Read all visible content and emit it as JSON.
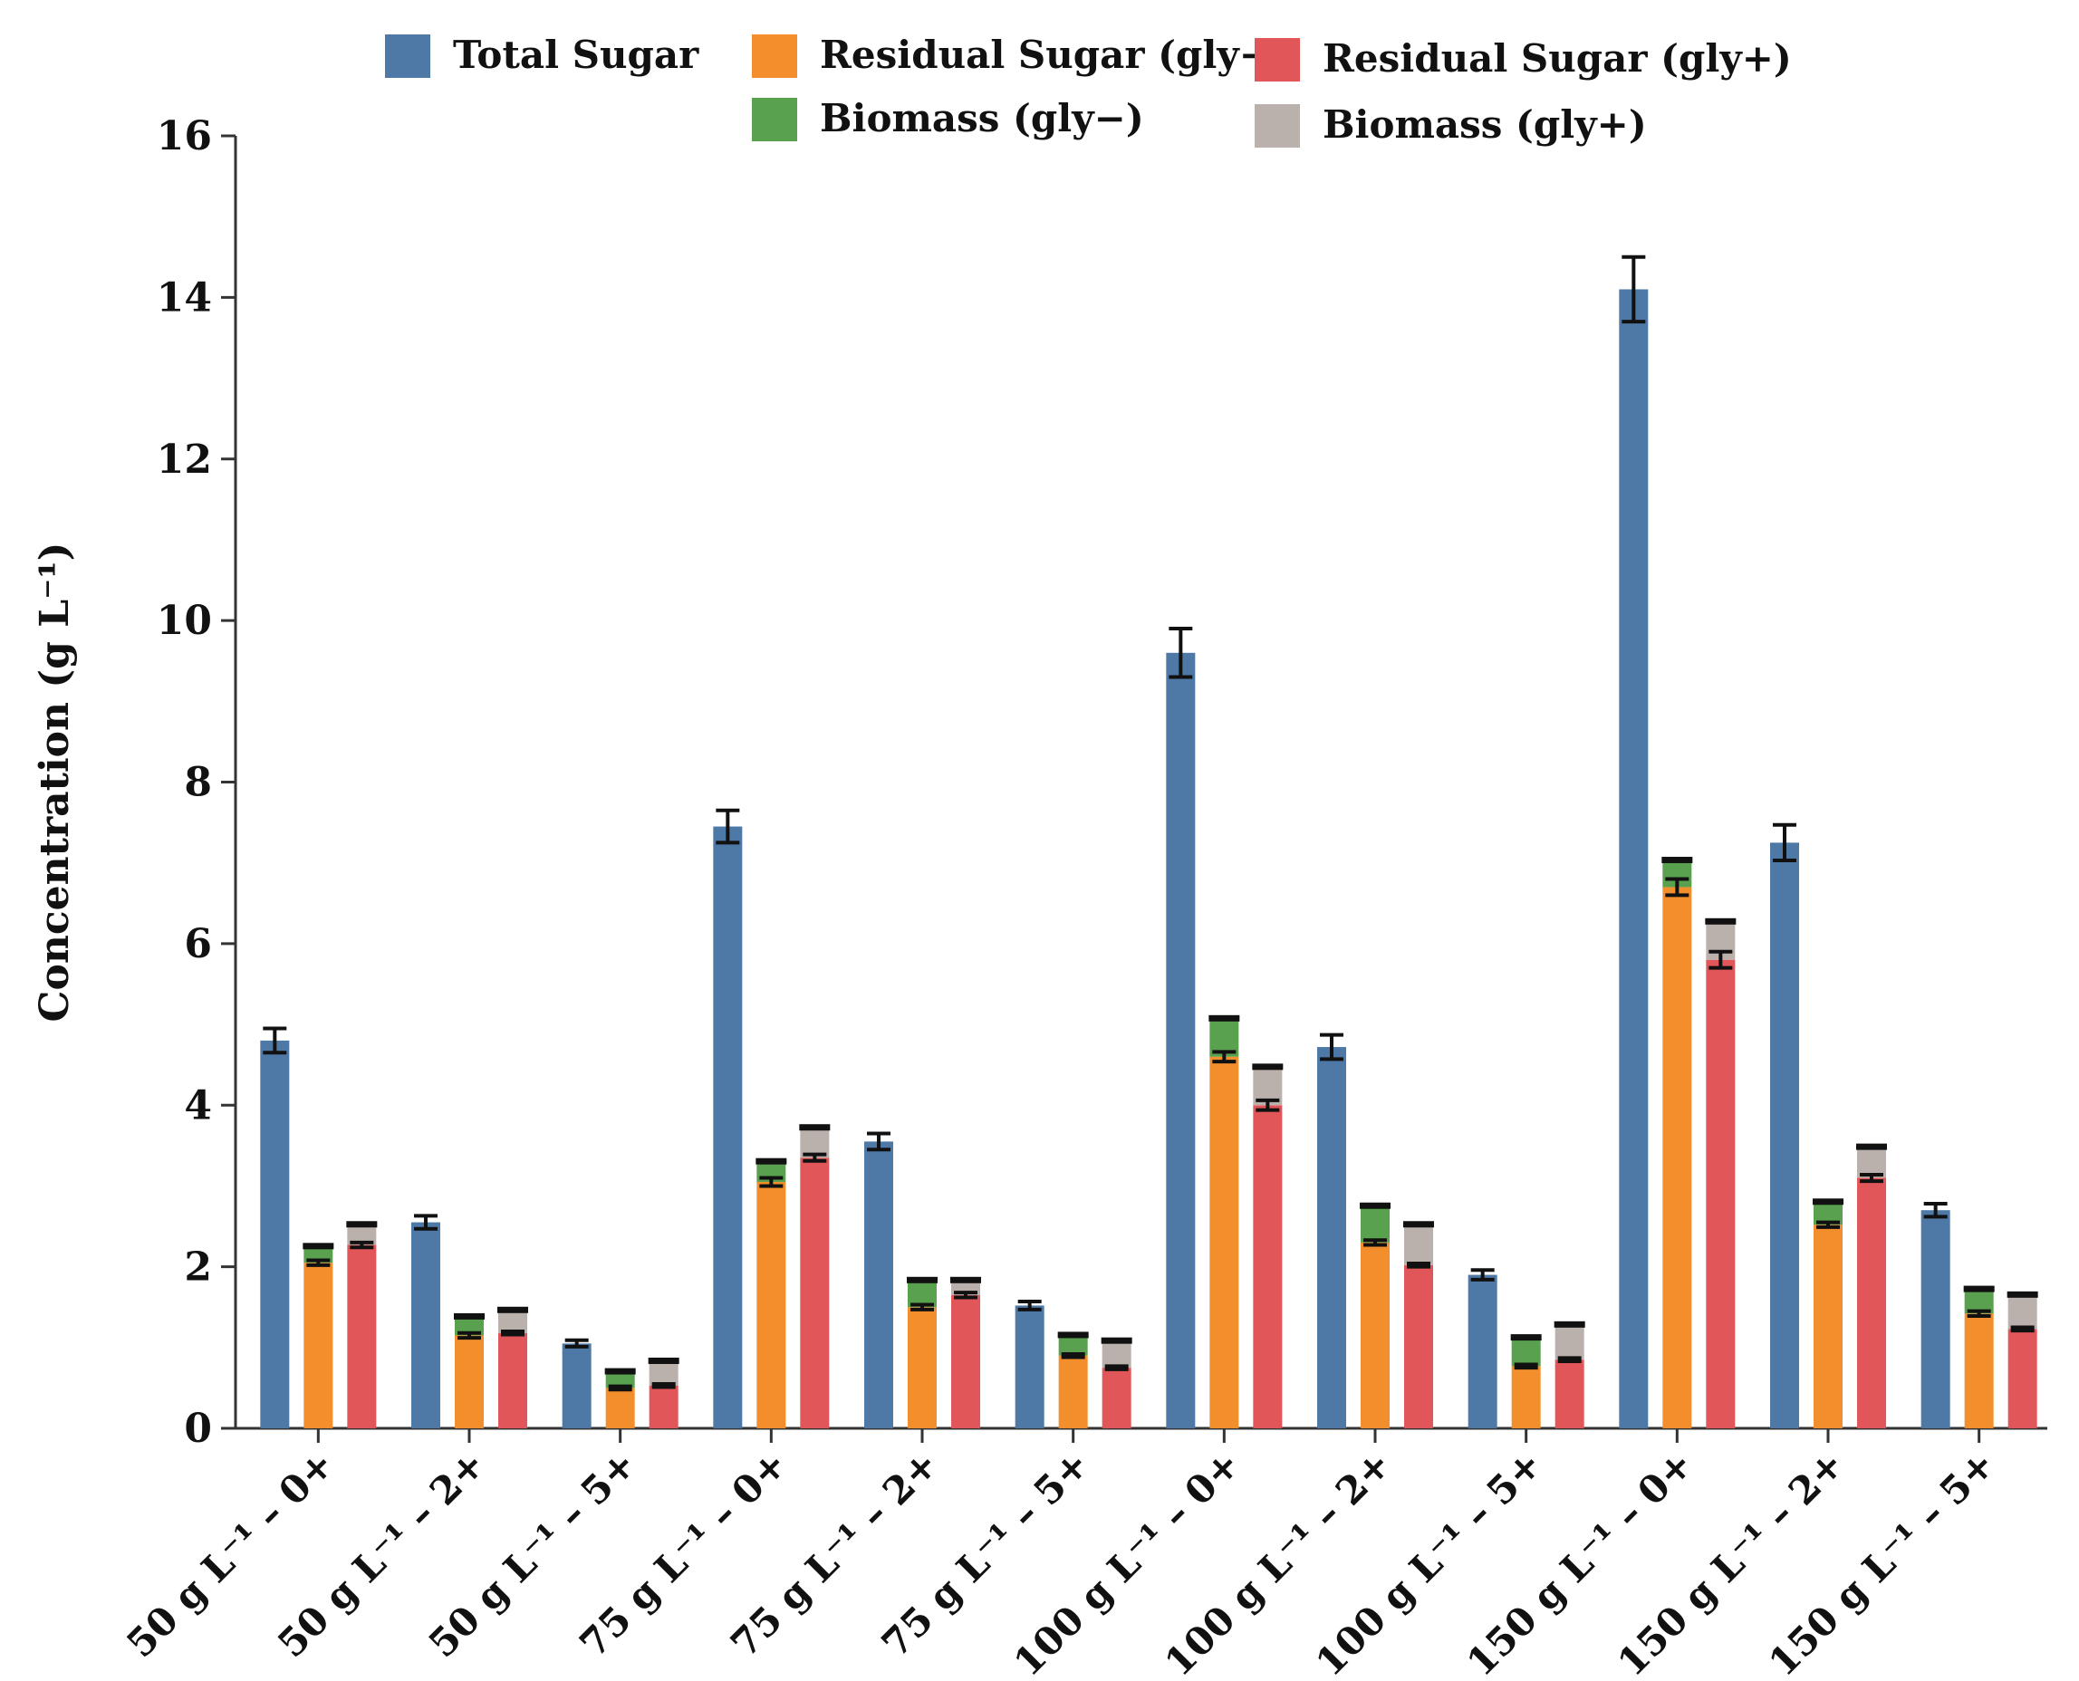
{
  "chart_data": {
    "type": "bar",
    "title": "",
    "xlabel": "",
    "ylabel": "Concentration (g L⁻¹)",
    "ylim": [
      0,
      16
    ],
    "yticks": [
      0,
      2,
      4,
      6,
      8,
      10,
      12,
      14,
      16
    ],
    "categories": [
      "50 g L⁻¹ – 0+",
      "50 g L⁻¹ – 2+",
      "50 g L⁻¹ – 5+",
      "75 g L⁻¹ – 0+",
      "75 g L⁻¹ – 2+",
      "75 g L⁻¹ – 5+",
      "100 g L⁻¹ – 0+",
      "100 g L⁻¹ – 2+",
      "100 g L⁻¹ – 5+",
      "150 g L⁻¹ – 0+",
      "150 g L⁻¹ – 2+",
      "150 g L⁻¹ – 5+"
    ],
    "series": [
      {
        "name": "Total Sugar",
        "color": "#4e79a7",
        "values": [
          4.8,
          2.55,
          1.05,
          7.45,
          3.55,
          1.52,
          9.6,
          4.72,
          1.9,
          14.1,
          7.25,
          2.7
        ],
        "errors": [
          0.15,
          0.08,
          0.04,
          0.2,
          0.1,
          0.05,
          0.3,
          0.15,
          0.06,
          0.4,
          0.22,
          0.08
        ]
      },
      {
        "name": "Residual Sugar (gly−)",
        "color": "#f28e2b",
        "values": [
          2.05,
          1.15,
          0.5,
          3.05,
          1.5,
          0.9,
          4.6,
          2.3,
          0.77,
          6.7,
          2.52,
          1.42
        ],
        "errors": [
          0.03,
          0.03,
          0.02,
          0.05,
          0.03,
          0.02,
          0.06,
          0.03,
          0.02,
          0.1,
          0.03,
          0.03
        ]
      },
      {
        "name": "Biomass (gly−)",
        "color": "#59a14f",
        "values": [
          0.2,
          0.23,
          0.2,
          0.25,
          0.33,
          0.25,
          0.47,
          0.45,
          0.35,
          0.33,
          0.28,
          0.3
        ]
      },
      {
        "name": "Residual Sugar (gly+)",
        "color": "#e15759",
        "values": [
          2.27,
          1.18,
          0.53,
          3.35,
          1.65,
          0.75,
          4.0,
          2.02,
          0.85,
          5.8,
          3.1,
          1.23
        ],
        "errors": [
          0.03,
          0.02,
          0.02,
          0.04,
          0.03,
          0.02,
          0.06,
          0.02,
          0.02,
          0.1,
          0.04,
          0.02
        ]
      },
      {
        "name": "Biomass (gly+)",
        "color": "#bab0ac",
        "values": [
          0.25,
          0.28,
          0.3,
          0.37,
          0.18,
          0.33,
          0.47,
          0.5,
          0.43,
          0.47,
          0.38,
          0.42
        ]
      }
    ],
    "legend": {
      "placement": "top",
      "items": [
        {
          "label": "Total Sugar",
          "color": "#4e79a7"
        },
        {
          "label": "Residual Sugar (gly−)",
          "color": "#f28e2b"
        },
        {
          "label": "Residual Sugar (gly+)",
          "color": "#e15759"
        },
        {
          "label": "Biomass (gly−)",
          "color": "#59a14f"
        },
        {
          "label": "Biomass (gly+)",
          "color": "#bab0ac"
        }
      ]
    }
  }
}
